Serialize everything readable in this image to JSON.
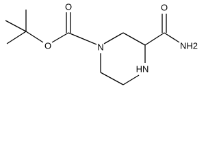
{
  "molecule": {
    "atoms": [
      {
        "label": "O"
      },
      {
        "label": "O"
      },
      {
        "label": "N"
      },
      {
        "label": "HN"
      },
      {
        "label": "O"
      },
      {
        "label": "NH2"
      }
    ]
  }
}
